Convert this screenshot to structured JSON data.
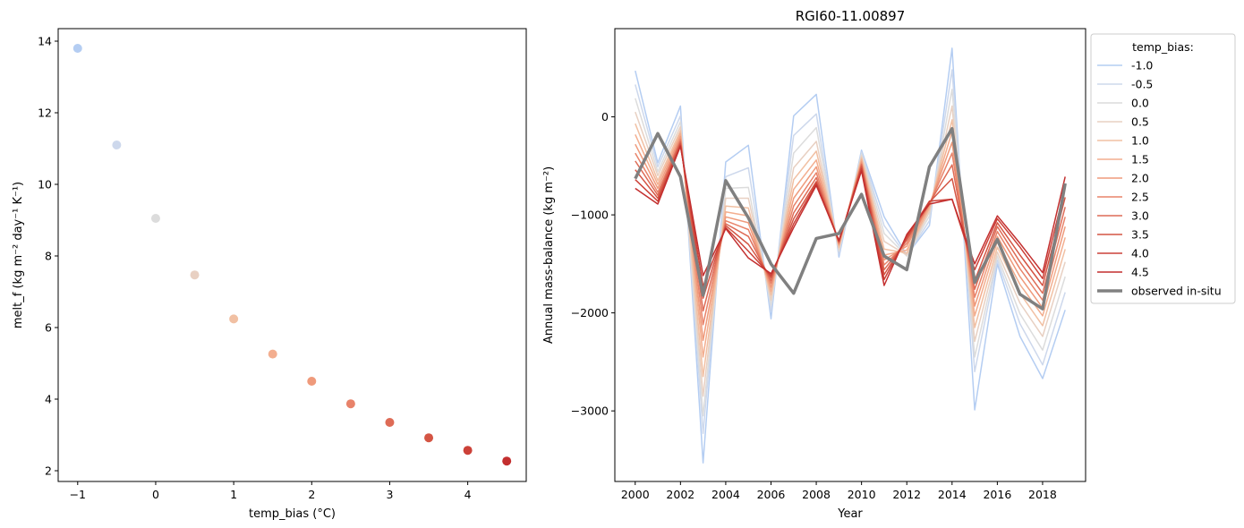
{
  "chart_data": [
    {
      "type": "scatter",
      "title": "",
      "xlabel": "temp_bias (°C)",
      "ylabel": "melt_f (kg m⁻² day⁻¹ K⁻¹)",
      "xlim": [
        -1.25,
        4.75
      ],
      "ylim": [
        1.7,
        14.35
      ],
      "xticks": [
        -1,
        0,
        1,
        2,
        3,
        4
      ],
      "yticks": [
        2,
        4,
        6,
        8,
        10,
        12,
        14
      ],
      "grid": false,
      "x": [
        -1.0,
        -0.5,
        0.0,
        0.5,
        1.0,
        1.5,
        2.0,
        2.5,
        3.0,
        3.5,
        4.0,
        4.5
      ],
      "y": [
        13.8,
        11.1,
        9.05,
        7.47,
        6.24,
        5.26,
        4.5,
        3.87,
        3.35,
        2.92,
        2.57,
        2.27
      ],
      "colors": [
        "#b4cdf2",
        "#cdd8ec",
        "#dcdcdc",
        "#e8d0c2",
        "#f1c0a3",
        "#f3ae8f",
        "#ef9a7b",
        "#e8836a",
        "#de6b56",
        "#d45544",
        "#cc4138",
        "#c32f2f"
      ]
    },
    {
      "type": "line",
      "title": "RGI60-11.00897",
      "xlabel": "Year",
      "ylabel": "Annual mass-balance (kg m⁻²)",
      "xlim": [
        1999.1,
        2019.9
      ],
      "ylim": [
        -3720,
        900
      ],
      "xticks": [
        2000,
        2002,
        2004,
        2006,
        2008,
        2010,
        2012,
        2014,
        2016,
        2018
      ],
      "yticks": [
        -3000,
        -2000,
        -1000,
        0
      ],
      "grid": false,
      "legend_title": "temp_bias:",
      "legend_position": "outside top-right",
      "x": [
        2000,
        2001,
        2002,
        2003,
        2004,
        2005,
        2006,
        2007,
        2008,
        2009,
        2010,
        2011,
        2012,
        2013,
        2014,
        2015,
        2016,
        2017,
        2018,
        2019
      ],
      "series": [
        {
          "name": "-1.0",
          "color": "#b4cdf2",
          "width": 1.5,
          "values": [
            470,
            -470,
            110,
            -3530,
            -460,
            -290,
            -2060,
            10,
            230,
            -1430,
            -340,
            -1020,
            -1410,
            -1110,
            700,
            -2990,
            -1500,
            -2240,
            -2670,
            -1970
          ]
        },
        {
          "name": "-0.5",
          "color": "#cdd8ec",
          "width": 1.5,
          "values": [
            330,
            -510,
            10,
            -3230,
            -610,
            -520,
            -1980,
            -190,
            30,
            -1400,
            -360,
            -1110,
            -1420,
            -1060,
            480,
            -2600,
            -1460,
            -2110,
            -2530,
            -1790
          ]
        },
        {
          "name": "0.0",
          "color": "#dcdcdc",
          "width": 1.5,
          "values": [
            190,
            -560,
            -50,
            -3050,
            -730,
            -720,
            -1920,
            -370,
            -110,
            -1370,
            -380,
            -1190,
            -1420,
            -1010,
            280,
            -2450,
            -1420,
            -2010,
            -2380,
            -1630
          ]
        },
        {
          "name": "0.5",
          "color": "#e8d0c2",
          "width": 1.5,
          "values": [
            50,
            -600,
            -100,
            -2850,
            -830,
            -830,
            -1870,
            -520,
            -250,
            -1350,
            -400,
            -1270,
            -1410,
            -970,
            110,
            -2290,
            -1380,
            -1900,
            -2240,
            -1480
          ]
        },
        {
          "name": "1.0",
          "color": "#f1c0a3",
          "width": 1.5,
          "values": [
            -70,
            -650,
            -140,
            -2650,
            -910,
            -930,
            -1820,
            -640,
            -350,
            -1330,
            -420,
            -1350,
            -1390,
            -940,
            -30,
            -2150,
            -1330,
            -1800,
            -2130,
            -1350
          ]
        },
        {
          "name": "1.5",
          "color": "#f3ae8f",
          "width": 1.5,
          "values": [
            -180,
            -690,
            -170,
            -2450,
            -970,
            -1010,
            -1780,
            -740,
            -440,
            -1310,
            -440,
            -1410,
            -1360,
            -920,
            -150,
            -2030,
            -1270,
            -1710,
            -2030,
            -1230
          ]
        },
        {
          "name": "2.0",
          "color": "#ef9a7b",
          "width": 1.5,
          "values": [
            -280,
            -730,
            -200,
            -2280,
            -1020,
            -1080,
            -1740,
            -830,
            -510,
            -1300,
            -460,
            -1460,
            -1320,
            -900,
            -260,
            -1930,
            -1220,
            -1630,
            -1950,
            -1120
          ]
        },
        {
          "name": "2.5",
          "color": "#e8836a",
          "width": 1.5,
          "values": [
            -370,
            -770,
            -230,
            -2120,
            -1060,
            -1150,
            -1700,
            -910,
            -570,
            -1290,
            -480,
            -1510,
            -1290,
            -890,
            -370,
            -1840,
            -1170,
            -1550,
            -1870,
            -1020
          ]
        },
        {
          "name": "3.0",
          "color": "#de6b56",
          "width": 1.5,
          "values": [
            -450,
            -800,
            -250,
            -1980,
            -1090,
            -1220,
            -1670,
            -980,
            -620,
            -1280,
            -490,
            -1560,
            -1260,
            -880,
            -490,
            -1760,
            -1120,
            -1480,
            -1800,
            -920
          ]
        },
        {
          "name": "3.5",
          "color": "#d45544",
          "width": 1.5,
          "values": [
            -540,
            -830,
            -270,
            -1850,
            -1110,
            -1300,
            -1640,
            -1040,
            -660,
            -1270,
            -510,
            -1610,
            -1240,
            -870,
            -630,
            -1670,
            -1080,
            -1410,
            -1720,
            -820
          ]
        },
        {
          "name": "4.0",
          "color": "#cc4138",
          "width": 1.5,
          "values": [
            -640,
            -860,
            -290,
            -1730,
            -1130,
            -1370,
            -1620,
            -1090,
            -680,
            -1270,
            -530,
            -1660,
            -1220,
            -860,
            -840,
            -1560,
            -1040,
            -1330,
            -1650,
            -720
          ]
        },
        {
          "name": "4.5",
          "color": "#c32f2f",
          "width": 1.5,
          "values": [
            -730,
            -890,
            -300,
            -1620,
            -1140,
            -1440,
            -1600,
            -1130,
            -700,
            -1260,
            -550,
            -1720,
            -1200,
            -890,
            -840,
            -1500,
            -1010,
            -1290,
            -1590,
            -610
          ]
        },
        {
          "name": "observed in-situ",
          "color": "#808080",
          "width": 3.5,
          "values": [
            -630,
            -170,
            -610,
            -1820,
            -650,
            -1030,
            -1500,
            -1800,
            -1240,
            -1190,
            -790,
            -1420,
            -1560,
            -510,
            -120,
            -1690,
            -1250,
            -1810,
            -1960,
            -680
          ]
        }
      ]
    }
  ]
}
